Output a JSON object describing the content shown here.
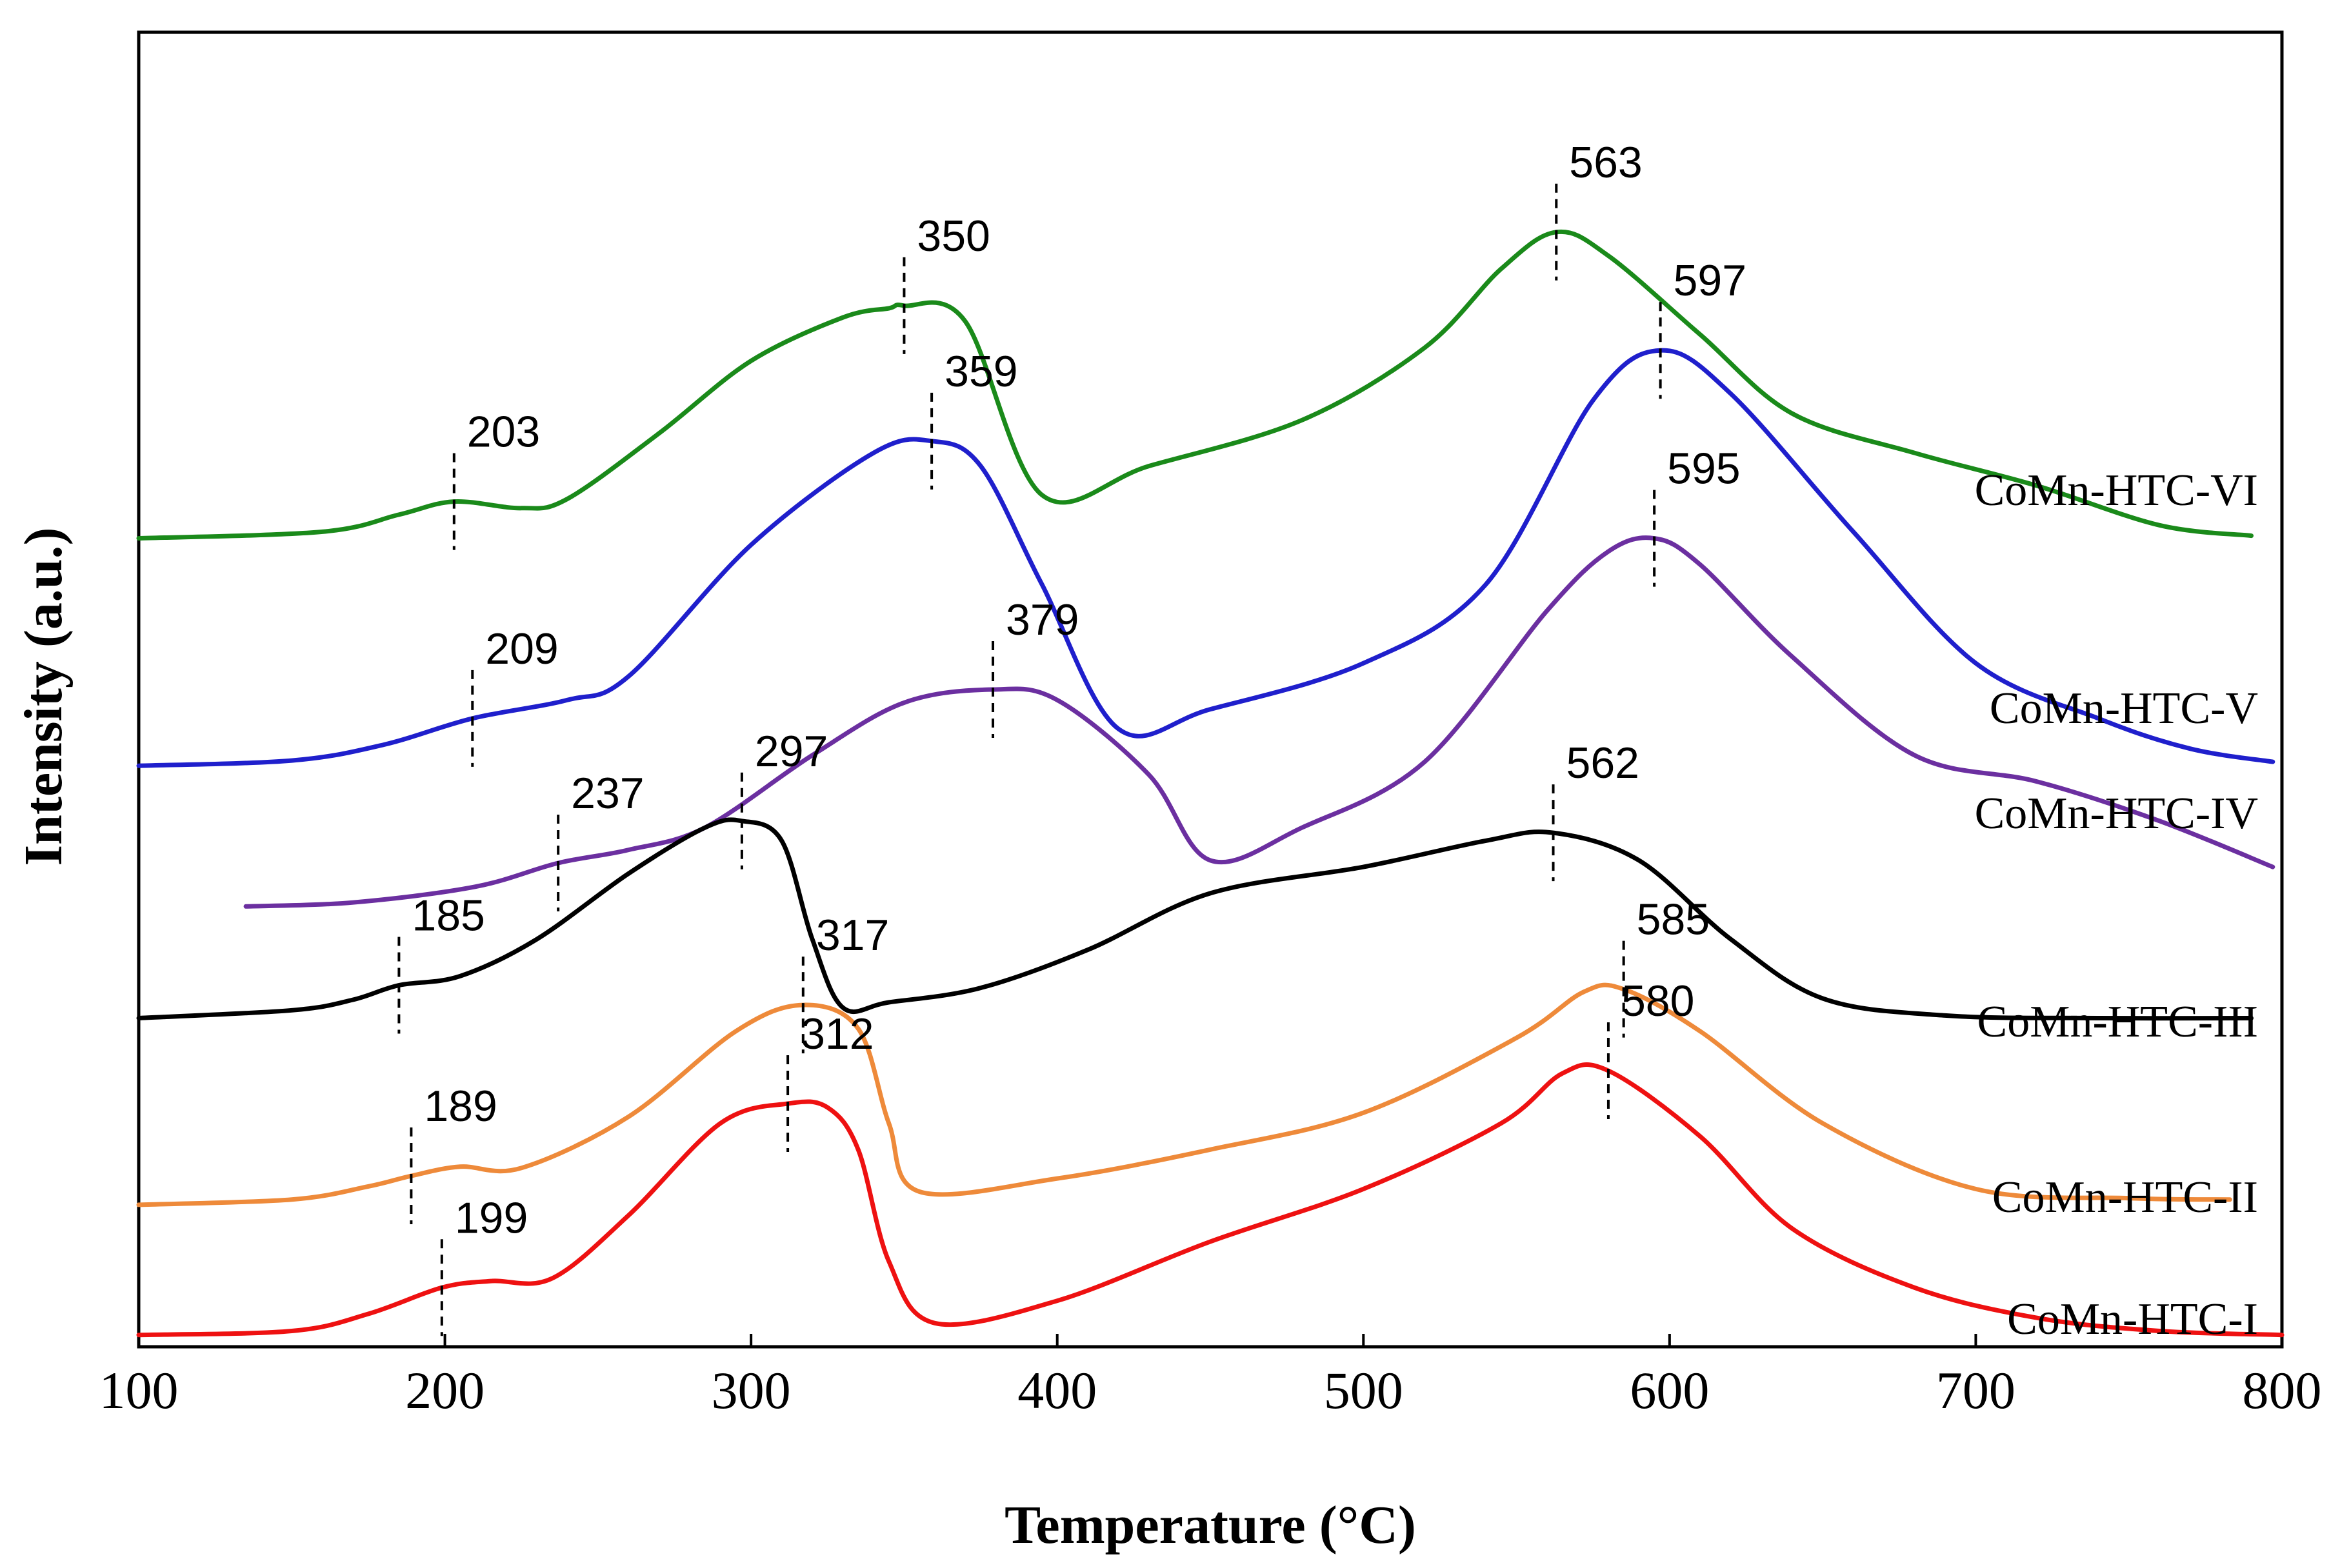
{
  "chart_data": {
    "type": "line",
    "title": "",
    "xlabel": "Temperature (°C)",
    "ylabel": "Intensity (a.u.)",
    "xlim": [
      100,
      800
    ],
    "ylim": [
      0,
      100
    ],
    "x_ticks": [
      100,
      200,
      300,
      400,
      500,
      600,
      700,
      800
    ],
    "grid": false,
    "series": [
      {
        "name": "CoMn-HTC-VI",
        "color": "#1a8a1a",
        "x": [
          100,
          160,
          185,
          203,
          225,
          240,
          270,
          300,
          330,
          345,
          350,
          370,
          395,
          430,
          480,
          520,
          545,
          563,
          580,
          610,
          640,
          680,
          720,
          760,
          790
        ],
        "y": [
          61.5,
          62.0,
          63.3,
          64.3,
          63.8,
          64.5,
          69.5,
          75.0,
          78.3,
          79.0,
          79.2,
          78.0,
          64.8,
          67.0,
          70.5,
          76.0,
          82.0,
          84.8,
          83.0,
          77.0,
          71.0,
          68.0,
          65.5,
          62.5,
          61.7
        ]
      },
      {
        "name": "CoMn-HTC-V",
        "color": "#1f1fcc",
        "x": [
          100,
          150,
          180,
          209,
          240,
          260,
          300,
          340,
          359,
          375,
          395,
          420,
          450,
          500,
          540,
          575,
          597,
          620,
          660,
          700,
          740,
          770,
          797
        ],
        "y": [
          44.2,
          44.6,
          45.8,
          47.8,
          49.2,
          51.0,
          61.0,
          68.0,
          68.9,
          67.0,
          58.0,
          47.0,
          48.5,
          52.0,
          58.0,
          72.0,
          75.8,
          72.5,
          62.0,
          52.0,
          47.8,
          45.5,
          44.5
        ]
      },
      {
        "name": "CoMn-HTC-IV",
        "color": "#6b2fa0",
        "x": [
          135,
          170,
          210,
          237,
          260,
          285,
          320,
          350,
          379,
          400,
          430,
          450,
          480,
          520,
          560,
          580,
          595,
          610,
          640,
          680,
          720,
          760,
          797
        ],
        "y": [
          33.5,
          33.8,
          35.0,
          36.8,
          37.8,
          39.5,
          45.0,
          49.0,
          50.0,
          49.2,
          43.5,
          37.0,
          39.5,
          44.5,
          56.0,
          60.5,
          61.5,
          59.5,
          52.5,
          45.0,
          43.0,
          40.0,
          36.5
        ]
      },
      {
        "name": "CoMn-HTC-III",
        "color": "#000000",
        "x": [
          100,
          150,
          170,
          185,
          205,
          230,
          260,
          285,
          297,
          310,
          320,
          330,
          345,
          375,
          410,
          450,
          500,
          540,
          562,
          590,
          620,
          650,
          690,
          740,
          790
        ],
        "y": [
          25.0,
          25.6,
          26.4,
          27.5,
          28.2,
          31.0,
          36.0,
          39.5,
          40.0,
          38.5,
          31.0,
          25.8,
          26.2,
          27.3,
          30.2,
          34.5,
          36.5,
          38.5,
          39.1,
          37.0,
          31.0,
          26.5,
          25.2,
          25.0,
          25.0
        ]
      },
      {
        "name": "CoMn-HTC-II",
        "color": "#ee8a3a",
        "x": [
          100,
          150,
          175,
          189,
          205,
          225,
          260,
          295,
          317,
          335,
          345,
          355,
          400,
          450,
          500,
          550,
          572,
          585,
          610,
          650,
          700,
          750,
          783
        ],
        "y": [
          10.8,
          11.2,
          12.2,
          13.0,
          13.7,
          13.6,
          17.5,
          24.0,
          26.0,
          24.2,
          17.0,
          11.8,
          12.8,
          15.0,
          17.8,
          23.5,
          27.0,
          27.2,
          24.0,
          17.0,
          12.0,
          11.3,
          11.2
        ]
      },
      {
        "name": "CoMn-HTC-I",
        "color": "#ee1111",
        "x": [
          100,
          150,
          175,
          199,
          215,
          235,
          260,
          290,
          312,
          325,
          335,
          345,
          360,
          400,
          450,
          500,
          545,
          565,
          580,
          610,
          640,
          680,
          720,
          760,
          800
        ],
        "y": [
          0.9,
          1.2,
          2.5,
          4.5,
          5.0,
          5.2,
          10.0,
          17.0,
          18.5,
          18.2,
          15.0,
          6.5,
          1.8,
          3.5,
          8.0,
          12.0,
          17.0,
          20.8,
          21.0,
          16.0,
          9.0,
          4.5,
          2.2,
          1.2,
          0.9
        ]
      }
    ],
    "peak_markers": [
      {
        "series": "CoMn-HTC-VI",
        "temp": 203,
        "label": "203"
      },
      {
        "series": "CoMn-HTC-VI",
        "temp": 350,
        "label": "350"
      },
      {
        "series": "CoMn-HTC-VI",
        "temp": 563,
        "label": "563"
      },
      {
        "series": "CoMn-HTC-V",
        "temp": 209,
        "label": "209"
      },
      {
        "series": "CoMn-HTC-V",
        "temp": 359,
        "label": "359"
      },
      {
        "series": "CoMn-HTC-V",
        "temp": 597,
        "label": "597"
      },
      {
        "series": "CoMn-HTC-IV",
        "temp": 237,
        "label": "237"
      },
      {
        "series": "CoMn-HTC-IV",
        "temp": 379,
        "label": "379"
      },
      {
        "series": "CoMn-HTC-IV",
        "temp": 595,
        "label": "595"
      },
      {
        "series": "CoMn-HTC-III",
        "temp": 185,
        "label": "185"
      },
      {
        "series": "CoMn-HTC-III",
        "temp": 297,
        "label": "297"
      },
      {
        "series": "CoMn-HTC-III",
        "temp": 562,
        "label": "562"
      },
      {
        "series": "CoMn-HTC-II",
        "temp": 189,
        "label": "189"
      },
      {
        "series": "CoMn-HTC-II",
        "temp": 317,
        "label": "317"
      },
      {
        "series": "CoMn-HTC-II",
        "temp": 585,
        "label": "585"
      },
      {
        "series": "CoMn-HTC-I",
        "temp": 199,
        "label": "199"
      },
      {
        "series": "CoMn-HTC-I",
        "temp": 312,
        "label": "312"
      },
      {
        "series": "CoMn-HTC-I",
        "temp": 580,
        "label": "580"
      }
    ]
  }
}
